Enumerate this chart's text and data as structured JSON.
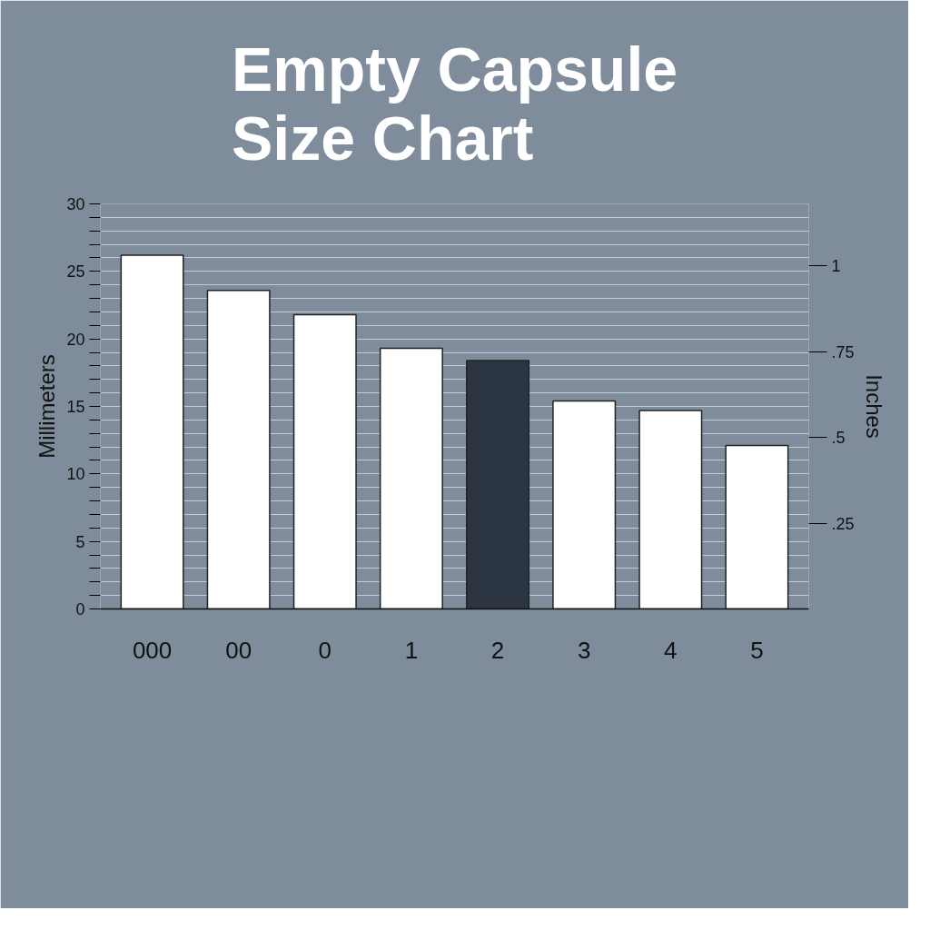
{
  "chart_data": {
    "type": "bar",
    "title": "Empty Capsule Size Chart",
    "categories": [
      "000",
      "00",
      "0",
      "1",
      "2",
      "3",
      "4",
      "5"
    ],
    "values": [
      26.2,
      23.6,
      21.8,
      19.3,
      18.4,
      15.4,
      14.7,
      12.1
    ],
    "colors": [
      "#ffffff",
      "#ffffff",
      "#ffffff",
      "#ffffff",
      "#2b3642",
      "#ffffff",
      "#ffffff",
      "#ffffff"
    ],
    "ylabel": "Millimeters",
    "y2label": "Inches",
    "ylim": [
      0,
      30
    ],
    "yticks": [
      0,
      {
        "value": 1,
        "label": null
      },
      {
        "value": 2,
        "label": null
      },
      {
        "value": 3,
        "label": null
      },
      {
        "value": 4,
        "label": null
      },
      5,
      {
        "value": 6,
        "label": null
      },
      {
        "value": 7,
        "label": null
      },
      {
        "value": 8,
        "label": null
      },
      {
        "value": 9,
        "label": null
      },
      10,
      {
        "value": 11,
        "label": null
      },
      {
        "value": 12,
        "label": null
      },
      {
        "value": 13,
        "label": null
      },
      {
        "value": 14,
        "label": null
      },
      15,
      {
        "value": 16,
        "label": null
      },
      {
        "value": 17,
        "label": null
      },
      {
        "value": 18,
        "label": null
      },
      {
        "value": 19,
        "label": null
      },
      20,
      {
        "value": 21,
        "label": null
      },
      {
        "value": 22,
        "label": null
      },
      {
        "value": 23,
        "label": null
      },
      {
        "value": 24,
        "label": null
      },
      25,
      {
        "value": 26,
        "label": null
      },
      {
        "value": 27,
        "label": null
      },
      {
        "value": 28,
        "label": null
      },
      {
        "value": 29,
        "label": null
      },
      30
    ],
    "y2lim": [
      0,
      1.181
    ],
    "y2ticks": [
      {
        "value": 0.25,
        "label": ".25"
      },
      {
        "value": 0.5,
        "label": ".5"
      },
      {
        "value": 0.75,
        "label": ".75"
      },
      1
    ],
    "grid": "y"
  }
}
